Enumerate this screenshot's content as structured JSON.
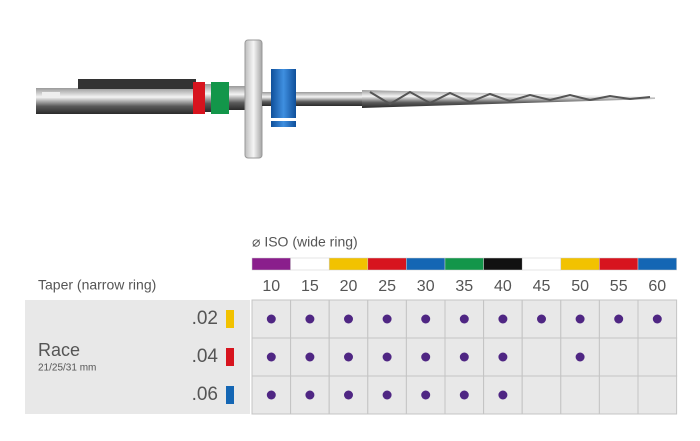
{
  "iso_label": "⌀ ISO (wide ring)",
  "taper_label": "Taper (narrow ring)",
  "product": {
    "name": "Race",
    "lengths": "21/25/31 mm"
  },
  "sizes": [
    {
      "label": 10,
      "color": "#8a1e8c"
    },
    {
      "label": 15,
      "color": "#ffffff"
    },
    {
      "label": 20,
      "color": "#f2c200"
    },
    {
      "label": 25,
      "color": "#d7141e"
    },
    {
      "label": 30,
      "color": "#1466b4"
    },
    {
      "label": 35,
      "color": "#13964a"
    },
    {
      "label": 40,
      "color": "#111111"
    },
    {
      "label": 45,
      "color": "#ffffff"
    },
    {
      "label": 50,
      "color": "#f2c200"
    },
    {
      "label": 55,
      "color": "#d7141e"
    },
    {
      "label": 60,
      "color": "#1466b4"
    }
  ],
  "rows": [
    {
      "taper": ".02",
      "color": "#f2c200",
      "available": [
        true,
        true,
        true,
        true,
        true,
        true,
        true,
        true,
        true,
        true,
        true
      ]
    },
    {
      "taper": ".04",
      "color": "#d7141e",
      "available": [
        true,
        true,
        true,
        true,
        true,
        true,
        true,
        false,
        true,
        false,
        false
      ]
    },
    {
      "taper": ".06",
      "color": "#1466b4",
      "available": [
        true,
        true,
        true,
        true,
        true,
        true,
        true,
        false,
        false,
        false,
        false
      ]
    }
  ]
}
